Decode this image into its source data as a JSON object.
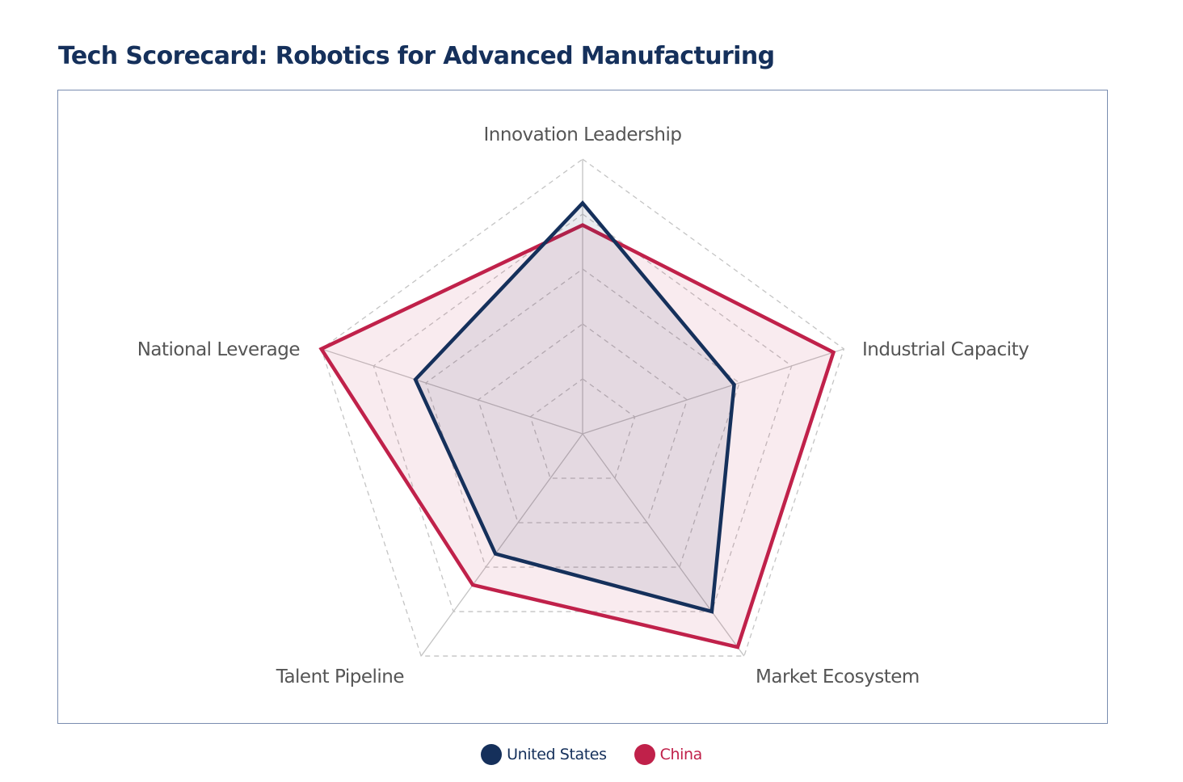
{
  "chart_data": {
    "type": "radar",
    "title": "Tech Scorecard: Robotics for Advanced Manufacturing",
    "axes": [
      "Innovation Leadership",
      "Industrial Capacity",
      "Market Ecosystem",
      "Talent Pipeline",
      "National Leverage"
    ],
    "rlim": [
      0,
      5
    ],
    "grid_levels": 5,
    "grid": true,
    "legend_position": "bottom-center",
    "series": [
      {
        "name": "United States",
        "values": [
          4.2,
          2.9,
          4.0,
          2.7,
          3.2
        ],
        "color": "#15305b"
      },
      {
        "name": "China",
        "values": [
          3.8,
          4.8,
          4.8,
          3.4,
          5.0
        ],
        "color": "#c0214a"
      }
    ]
  }
}
